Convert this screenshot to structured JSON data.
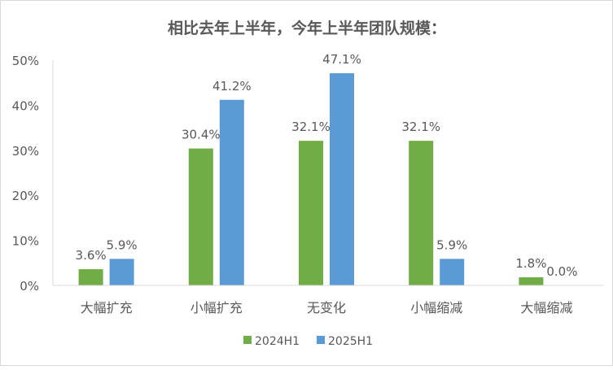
{
  "chart_data": {
    "type": "bar",
    "title": "相比去年上半年，今年上半年团队规模：",
    "categories": [
      "大幅扩充",
      "小幅扩充",
      "无变化",
      "小幅缩减",
      "大幅缩减"
    ],
    "series": [
      {
        "name": "2024H1",
        "color": "#70AD47",
        "values": [
          3.6,
          30.4,
          32.1,
          32.1,
          1.8
        ],
        "labels": [
          "3.6%",
          "30.4%",
          "32.1%",
          "32.1%",
          "1.8%"
        ]
      },
      {
        "name": "2025H1",
        "color": "#5B9BD5",
        "values": [
          5.9,
          41.2,
          47.1,
          5.9,
          0.0
        ],
        "labels": [
          "5.9%",
          "41.2%",
          "47.1%",
          "5.9%",
          "0.0%"
        ]
      }
    ],
    "yticks": [
      "0%",
      "10%",
      "20%",
      "30%",
      "40%",
      "50%"
    ],
    "ylim": [
      0,
      50
    ],
    "xlabel": "",
    "ylabel": "",
    "grid": false,
    "legend": "bottom"
  }
}
